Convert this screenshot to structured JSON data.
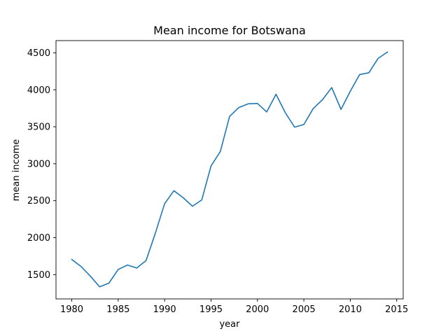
{
  "chart_data": {
    "type": "line",
    "title": "Mean income for Botswana",
    "xlabel": "year",
    "ylabel": "mean income",
    "xlim": [
      1978.3,
      2015.7
    ],
    "ylim": [
      1172,
      4665
    ],
    "xticks": [
      1980,
      1985,
      1990,
      1995,
      2000,
      2005,
      2010,
      2015
    ],
    "yticks": [
      1500,
      2000,
      2500,
      3000,
      3500,
      4000,
      4500
    ],
    "grid": false,
    "series": [
      {
        "color": "#1f77b4",
        "x": [
          1980,
          1981,
          1982,
          1983,
          1984,
          1985,
          1986,
          1987,
          1988,
          1989,
          1990,
          1991,
          1992,
          1993,
          1994,
          1995,
          1996,
          1997,
          1998,
          1999,
          2000,
          2001,
          2002,
          2003,
          2004,
          2005,
          2006,
          2007,
          2008,
          2009,
          2010,
          2011,
          2012,
          2013,
          2014
        ],
        "values": [
          1705,
          1610,
          1480,
          1335,
          1385,
          1570,
          1630,
          1590,
          1690,
          2060,
          2460,
          2635,
          2540,
          2425,
          2510,
          2970,
          3165,
          3640,
          3760,
          3810,
          3815,
          3700,
          3940,
          3690,
          3495,
          3530,
          3745,
          3865,
          4030,
          3735,
          3980,
          4205,
          4230,
          4425,
          4510
        ]
      }
    ]
  }
}
